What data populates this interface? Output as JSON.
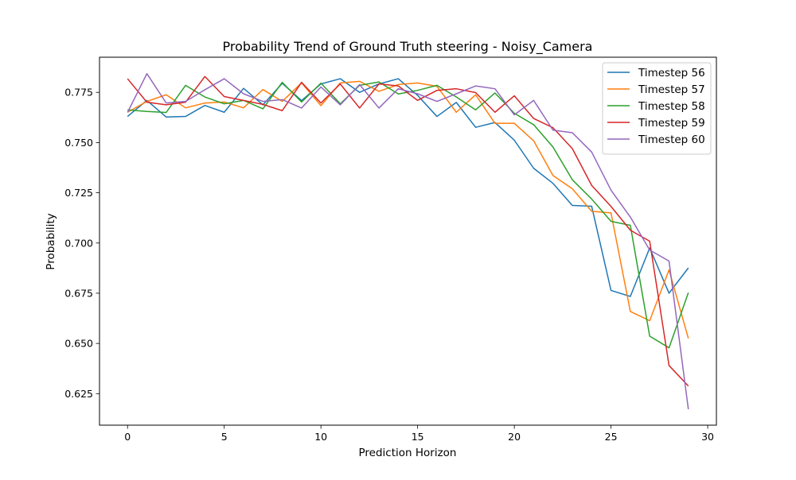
{
  "chart_data": {
    "type": "line",
    "title": "Probability Trend of Ground Truth steering - Noisy_Camera",
    "xlabel": "Prediction Horizon",
    "ylabel": "Probability",
    "xlim": [
      -1.45,
      30.45
    ],
    "ylim": [
      0.6093,
      0.7925
    ],
    "xticks": [
      0,
      5,
      10,
      15,
      20,
      25,
      30
    ],
    "yticks": [
      0.625,
      0.65,
      0.675,
      0.7,
      0.725,
      0.75,
      0.775
    ],
    "xtick_labels": [
      "0",
      "5",
      "10",
      "15",
      "20",
      "25",
      "30"
    ],
    "ytick_labels": [
      "0.625",
      "0.650",
      "0.675",
      "0.700",
      "0.725",
      "0.750",
      "0.775"
    ],
    "grid": false,
    "legend_position": "top-right",
    "x": [
      0,
      1,
      2,
      3,
      4,
      5,
      6,
      7,
      8,
      9,
      10,
      11,
      12,
      13,
      14,
      15,
      16,
      17,
      18,
      19,
      20,
      21,
      22,
      23,
      24,
      25,
      26,
      27,
      28,
      29
    ],
    "series": [
      {
        "name": "Timestep 56",
        "color": "#1f77b4",
        "values": [
          0.763,
          0.771,
          0.7627,
          0.763,
          0.7685,
          0.7651,
          0.777,
          0.7688,
          0.7795,
          0.7709,
          0.7792,
          0.7818,
          0.775,
          0.7792,
          0.7818,
          0.7735,
          0.763,
          0.77,
          0.7576,
          0.76,
          0.7512,
          0.7372,
          0.7297,
          0.7187,
          0.7183,
          0.6764,
          0.6734,
          0.6975,
          0.675,
          0.6876
        ]
      },
      {
        "name": "Timestep 57",
        "color": "#ff7f0e",
        "values": [
          0.7651,
          0.7705,
          0.7738,
          0.7673,
          0.7697,
          0.7702,
          0.7673,
          0.7764,
          0.7705,
          0.7797,
          0.7684,
          0.7797,
          0.7805,
          0.7755,
          0.7789,
          0.7797,
          0.778,
          0.7651,
          0.7738,
          0.7596,
          0.7596,
          0.7509,
          0.7336,
          0.727,
          0.7158,
          0.715,
          0.6659,
          0.6613,
          0.6866,
          0.6525
        ]
      },
      {
        "name": "Timestep 58",
        "color": "#2ca02c",
        "values": [
          0.7663,
          0.7655,
          0.765,
          0.7785,
          0.7727,
          0.7693,
          0.771,
          0.7668,
          0.78,
          0.7702,
          0.7796,
          0.7693,
          0.7785,
          0.7802,
          0.7742,
          0.776,
          0.7785,
          0.7727,
          0.7663,
          0.7747,
          0.7646,
          0.7589,
          0.7478,
          0.7315,
          0.7219,
          0.7108,
          0.7088,
          0.6536,
          0.6478,
          0.6753
        ]
      },
      {
        "name": "Timestep 59",
        "color": "#d62728",
        "values": [
          0.7818,
          0.7701,
          0.7688,
          0.7701,
          0.7829,
          0.7729,
          0.771,
          0.769,
          0.7659,
          0.78,
          0.7697,
          0.7792,
          0.7672,
          0.7792,
          0.7782,
          0.771,
          0.776,
          0.7768,
          0.7749,
          0.7651,
          0.7733,
          0.762,
          0.7574,
          0.747,
          0.7287,
          0.7182,
          0.7064,
          0.7009,
          0.639,
          0.6288
        ]
      },
      {
        "name": "Timestep 60",
        "color": "#9467bd",
        "values": [
          0.765,
          0.7843,
          0.7697,
          0.7705,
          0.7763,
          0.7818,
          0.7743,
          0.7705,
          0.7714,
          0.7672,
          0.7777,
          0.7688,
          0.7789,
          0.7672,
          0.7768,
          0.7743,
          0.7705,
          0.7743,
          0.7782,
          0.7768,
          0.7638,
          0.771,
          0.7562,
          0.7549,
          0.7453,
          0.7263,
          0.7129,
          0.6965,
          0.691,
          0.6172
        ]
      }
    ]
  }
}
